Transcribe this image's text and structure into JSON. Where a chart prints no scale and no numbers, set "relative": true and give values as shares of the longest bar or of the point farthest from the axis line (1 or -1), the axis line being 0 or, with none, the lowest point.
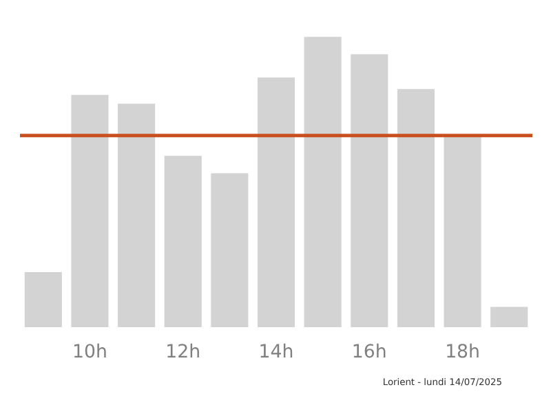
{
  "chart_data": {
    "type": "bar",
    "relative": true,
    "categories": [
      null,
      "10h",
      null,
      "12h",
      null,
      "14h",
      null,
      "16h",
      null,
      "18h",
      null
    ],
    "values": [
      0.19,
      0.8,
      0.77,
      0.59,
      0.53,
      0.86,
      1,
      0.94,
      0.82,
      0.66,
      0.07
    ],
    "color": "#d3d3d3",
    "ref_lines": [
      {
        "axis": "y",
        "value": 0.66,
        "color": "#c8501e"
      }
    ],
    "annotations": [
      "Lorient - lundi 14/07/2025"
    ]
  }
}
